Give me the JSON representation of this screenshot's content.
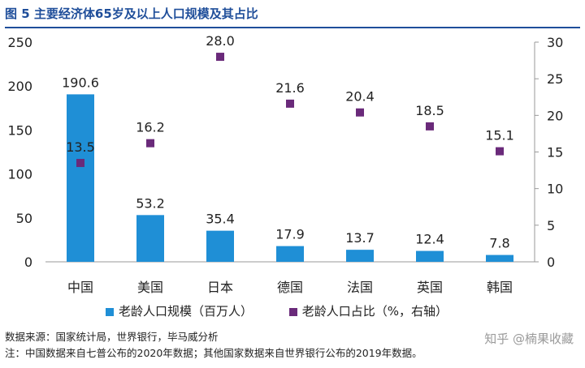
{
  "title": "图 5  主要经济体65岁及以上人口规模及其占比",
  "colors": {
    "bar": "#1f8fd6",
    "point": "#6a2a7a",
    "title": "#1f4e9a"
  },
  "chart_data": {
    "type": "bar",
    "categories": [
      "中国",
      "美国",
      "日本",
      "德国",
      "法国",
      "英国",
      "韩国"
    ],
    "series": [
      {
        "name": "老龄人口规模（百万人）",
        "type": "bar",
        "axis": "left",
        "values": [
          190.6,
          53.2,
          35.4,
          17.9,
          13.7,
          12.4,
          7.8
        ]
      },
      {
        "name": "老龄人口占比（%，右轴）",
        "type": "scatter",
        "axis": "right",
        "values": [
          13.5,
          16.2,
          28.0,
          21.6,
          20.4,
          18.5,
          15.1
        ]
      }
    ],
    "y_left": {
      "range": [
        0,
        250
      ],
      "ticks": [
        "0",
        "50",
        "100",
        "150",
        "200",
        "250"
      ]
    },
    "y_right": {
      "range": [
        0,
        30
      ],
      "ticks": [
        "0",
        "5",
        "10",
        "15",
        "20",
        "25",
        "30"
      ]
    },
    "bar_labels": [
      "190.6",
      "53.2",
      "35.4",
      "17.9",
      "13.7",
      "12.4",
      "7.8"
    ],
    "point_labels": [
      "13.5",
      "16.2",
      "28.0",
      "21.6",
      "20.4",
      "18.5",
      "15.1"
    ],
    "grid": false,
    "legend": "bottom"
  },
  "source_note": "数据来源：国家统计局，世界银行，毕马威分析",
  "footnote": "注：中国数据来自七普公布的2020年数据；其他国家数据来自世界银行公布的2019年数据。",
  "watermark": "知乎 @楠果收藏"
}
